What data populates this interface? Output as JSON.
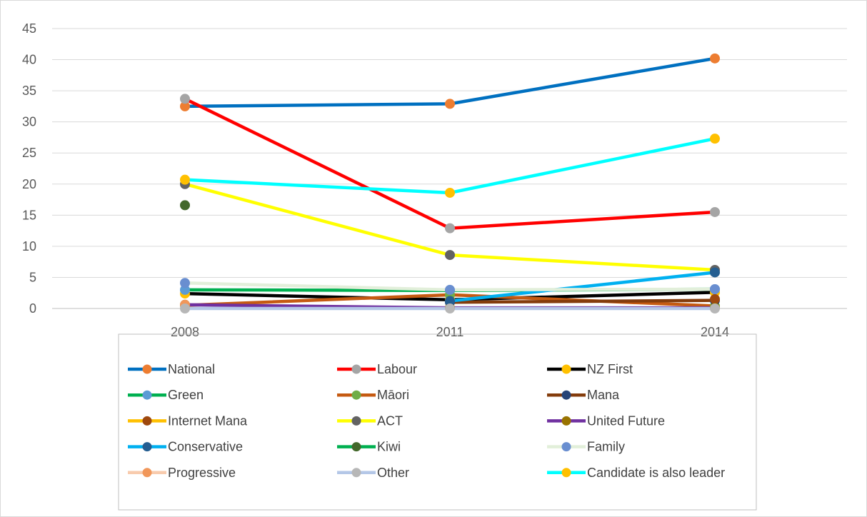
{
  "chart_data": {
    "type": "line",
    "title": "",
    "xlabel": "",
    "ylabel": "",
    "categories": [
      "2008",
      "2011",
      "2014"
    ],
    "ylim": [
      0,
      45
    ],
    "yticks": [
      0,
      5,
      10,
      15,
      20,
      25,
      30,
      35,
      40,
      45
    ],
    "grid": true,
    "legend_position": "bottom",
    "series": [
      {
        "name": "National",
        "values": [
          32.5,
          32.9,
          40.2
        ],
        "line_color": "#0070C0",
        "marker_color": "#ED7D31"
      },
      {
        "name": "Labour",
        "values": [
          33.7,
          12.9,
          15.5
        ],
        "line_color": "#FF0000",
        "marker_color": "#A5A5A5"
      },
      {
        "name": "NZ First",
        "values": [
          2.4,
          1.4,
          2.6
        ],
        "line_color": "#000000",
        "marker_color": "#FFC000"
      },
      {
        "name": "Green",
        "values": [
          3.0,
          2.9,
          3.1
        ],
        "line_color": "#00B050",
        "marker_color": "#5B9BD5"
      },
      {
        "name": "Māori",
        "values": [
          0.5,
          2.2,
          0.4
        ],
        "line_color": "#C55A11",
        "marker_color": "#70AD47"
      },
      {
        "name": "Mana",
        "values": [
          null,
          1.0,
          1.3
        ],
        "line_color": "#843C0C",
        "marker_color": "#264478"
      },
      {
        "name": "Internet Mana",
        "values": [
          null,
          null,
          1.5
        ],
        "line_color": "#FFC000",
        "marker_color": "#9E480E"
      },
      {
        "name": "ACT",
        "values": [
          20.0,
          8.6,
          6.2
        ],
        "line_color": "#FFFF00",
        "marker_color": "#636363"
      },
      {
        "name": "United Future",
        "values": [
          0.6,
          0.1,
          0.1
        ],
        "line_color": "#7030A0",
        "marker_color": "#997300"
      },
      {
        "name": "Conservative",
        "values": [
          null,
          1.2,
          5.8
        ],
        "line_color": "#00B0F0",
        "marker_color": "#255E91"
      },
      {
        "name": "Kiwi",
        "values": [
          16.6,
          null,
          null
        ],
        "line_color": "#00B050",
        "marker_color": "#43682B"
      },
      {
        "name": "Family",
        "values": [
          4.1,
          3.0,
          3.1
        ],
        "line_color": "#E2EFDA",
        "marker_color": "#698ED0"
      },
      {
        "name": "Progressive",
        "values": [
          0.6,
          null,
          null
        ],
        "line_color": "#F8CBAD",
        "marker_color": "#F1975A"
      },
      {
        "name": "Other",
        "values": [
          0,
          0,
          0
        ],
        "line_color": "#B4C7E7",
        "marker_color": "#B7B7B7"
      },
      {
        "name": "Candidate is also leader",
        "values": [
          20.7,
          18.6,
          27.3
        ],
        "line_color": "#00FFFF",
        "marker_color": "#FFC000"
      }
    ]
  }
}
